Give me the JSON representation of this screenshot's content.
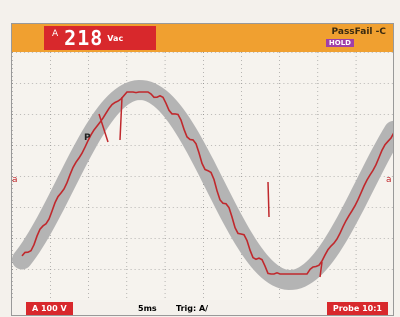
{
  "header": {
    "channel": "A",
    "reading": "218",
    "unit": "Vac",
    "status": "PassFail -C",
    "tag": "HOLD"
  },
  "footer": {
    "range": "A 100 V",
    "timebase": "5ms",
    "trigger": "Trig: A/",
    "probe": "Probe 10:1"
  },
  "markers": {
    "cursor": "P",
    "left": "a",
    "right": "a"
  }
}
